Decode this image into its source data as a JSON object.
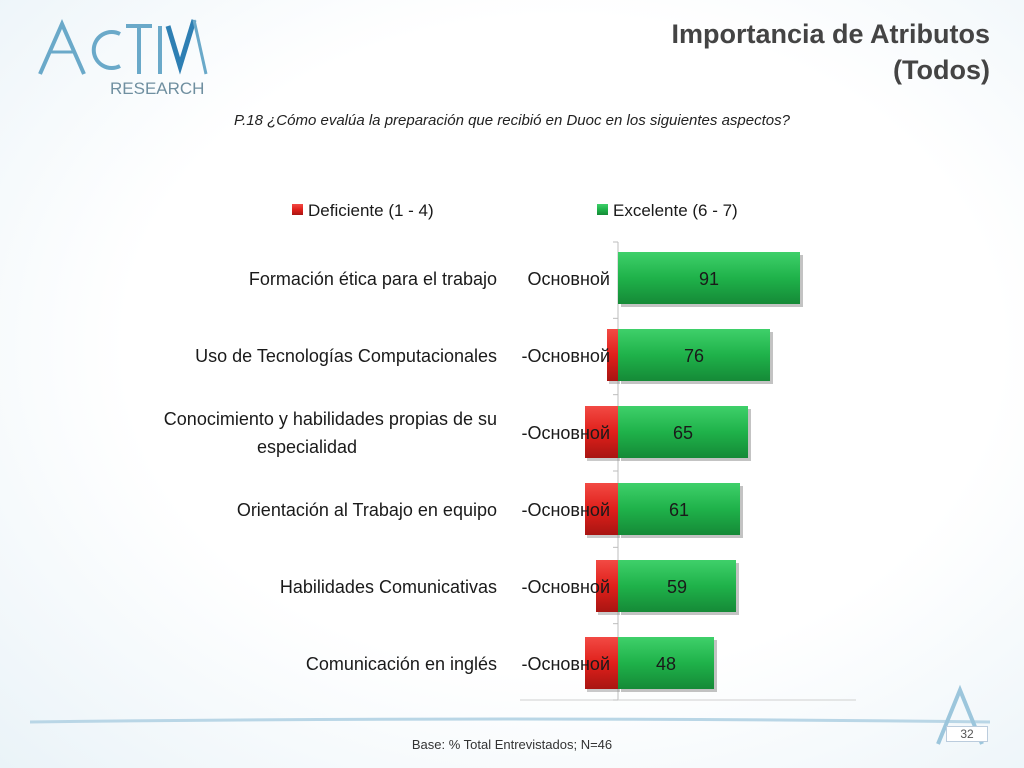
{
  "header": {
    "title_line1": "Importancia de Atributos",
    "title_line2": "(Todos)",
    "logo_text_main": "ACTIVA",
    "logo_text_sub": "RESEARCH"
  },
  "question": "P.18 ¿Cómo evalúa la preparación que recibió en Duoc en los siguientes aspectos?",
  "footer": {
    "base": "Base: % Total Entrevistados; N=46",
    "page_number": "32"
  },
  "colors": {
    "negative": "#e0201b",
    "positive": "#1fb24a",
    "accent": "#3b8fc4"
  },
  "chart_data": {
    "type": "bar",
    "orientation": "horizontal-diverging",
    "legend_placement": "top",
    "categories": [
      "Formación ética para el trabajo",
      "Uso de Tecnologías Computacionales",
      "Conocimiento y habilidades propias de su especialidad",
      "Orientación al Trabajo en equipo",
      "Habilidades Comunicativas",
      "Comunicación en inglés"
    ],
    "series": [
      {
        "name": "Deficiente (1 - 4)",
        "values": [
          0,
          2,
          6,
          6,
          4,
          6
        ],
        "labels": [
          "Основной",
          "-Основной",
          "-Основной",
          "-Основной",
          "-Основной",
          "-Основной"
        ]
      },
      {
        "name": "Excelente (6 - 7)",
        "values": [
          91,
          76,
          65,
          61,
          59,
          48
        ],
        "labels": [
          "91",
          "76",
          "65",
          "61",
          "59",
          "48"
        ]
      }
    ],
    "xlim": [
      -50,
      120
    ]
  }
}
